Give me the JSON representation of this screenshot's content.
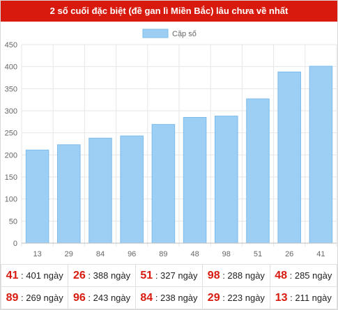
{
  "title": "2 số cuối đặc biệt (đề gan lì Miền Bắc) lâu chưa về nhất",
  "colors": {
    "header_bg": "#d81a0e",
    "bar_fill": "#9dcff5",
    "bar_stroke": "#7cbcec",
    "number_red": "#d81a0e",
    "grid": "#e6e6e6"
  },
  "chart_data": {
    "type": "bar",
    "categories": [
      "13",
      "29",
      "84",
      "96",
      "89",
      "48",
      "98",
      "51",
      "26",
      "41"
    ],
    "series": [
      {
        "name": "Cặp số",
        "values": [
          211,
          223,
          238,
          243,
          269,
          285,
          288,
          327,
          388,
          401
        ]
      }
    ],
    "ylim": [
      0,
      450
    ],
    "yticks": [
      0,
      50,
      100,
      150,
      200,
      250,
      300,
      350,
      400,
      450
    ],
    "grid": true,
    "legend_position": "top-center"
  },
  "stats": {
    "unit": "ngày",
    "rows": [
      [
        {
          "number": "41",
          "days": "401"
        },
        {
          "number": "26",
          "days": "388"
        },
        {
          "number": "51",
          "days": "327"
        },
        {
          "number": "98",
          "days": "288"
        },
        {
          "number": "48",
          "days": "285"
        }
      ],
      [
        {
          "number": "89",
          "days": "269"
        },
        {
          "number": "96",
          "days": "243"
        },
        {
          "number": "84",
          "days": "238"
        },
        {
          "number": "29",
          "days": "223"
        },
        {
          "number": "13",
          "days": "211"
        }
      ]
    ]
  }
}
